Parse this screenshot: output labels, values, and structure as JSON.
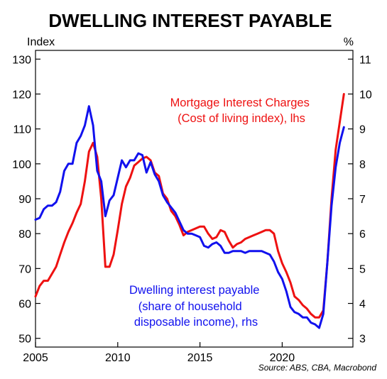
{
  "chart_data": {
    "type": "line",
    "title": "DWELLING INTEREST PAYABLE",
    "left_axis": {
      "unit": "Index",
      "range": [
        47.5,
        132.5
      ],
      "ticks": [
        50,
        60,
        70,
        80,
        90,
        100,
        110,
        120,
        130
      ]
    },
    "right_axis": {
      "unit": "%",
      "range": [
        2.75,
        11.25
      ],
      "ticks": [
        3,
        4,
        5,
        6,
        7,
        8,
        9,
        10,
        11
      ]
    },
    "x_axis": {
      "range": [
        2005,
        2024.3
      ],
      "ticks": [
        2005,
        2010,
        2015,
        2020
      ]
    },
    "grid": false,
    "series": [
      {
        "name": "Mortgage Interest Charges",
        "label_lines": [
          "Mortgage Interest Charges",
          "(Cost of living index), lhs"
        ],
        "axis": "left",
        "color": "#ee1111",
        "points": [
          [
            2005.0,
            62.0
          ],
          [
            2005.25,
            65.0
          ],
          [
            2005.5,
            66.5
          ],
          [
            2005.75,
            66.5
          ],
          [
            2006.0,
            68.5
          ],
          [
            2006.25,
            70.5
          ],
          [
            2006.5,
            74.0
          ],
          [
            2006.75,
            77.5
          ],
          [
            2007.0,
            80.5
          ],
          [
            2007.25,
            83.0
          ],
          [
            2007.5,
            86.0
          ],
          [
            2007.75,
            88.5
          ],
          [
            2008.0,
            95.0
          ],
          [
            2008.25,
            103.5
          ],
          [
            2008.5,
            106.0
          ],
          [
            2008.75,
            102.0
          ],
          [
            2009.0,
            90.0
          ],
          [
            2009.25,
            70.5
          ],
          [
            2009.5,
            70.5
          ],
          [
            2009.75,
            74.0
          ],
          [
            2010.0,
            81.0
          ],
          [
            2010.25,
            88.5
          ],
          [
            2010.5,
            93.5
          ],
          [
            2010.75,
            96.0
          ],
          [
            2011.0,
            99.5
          ],
          [
            2011.25,
            100.5
          ],
          [
            2011.5,
            101.5
          ],
          [
            2011.75,
            102.0
          ],
          [
            2012.0,
            101.0
          ],
          [
            2012.25,
            97.5
          ],
          [
            2012.5,
            96.5
          ],
          [
            2012.75,
            91.5
          ],
          [
            2013.0,
            90.0
          ],
          [
            2013.25,
            86.5
          ],
          [
            2013.5,
            85.0
          ],
          [
            2013.75,
            82.5
          ],
          [
            2014.0,
            79.5
          ],
          [
            2014.25,
            80.5
          ],
          [
            2014.5,
            81.0
          ],
          [
            2014.75,
            81.5
          ],
          [
            2015.0,
            82.0
          ],
          [
            2015.25,
            82.0
          ],
          [
            2015.5,
            80.0
          ],
          [
            2015.75,
            78.5
          ],
          [
            2016.0,
            79.0
          ],
          [
            2016.25,
            81.0
          ],
          [
            2016.5,
            80.5
          ],
          [
            2016.75,
            78.0
          ],
          [
            2017.0,
            76.0
          ],
          [
            2017.25,
            77.0
          ],
          [
            2017.5,
            77.5
          ],
          [
            2017.75,
            78.5
          ],
          [
            2018.0,
            79.0
          ],
          [
            2018.25,
            79.5
          ],
          [
            2018.5,
            80.0
          ],
          [
            2018.75,
            80.5
          ],
          [
            2019.0,
            81.0
          ],
          [
            2019.25,
            81.0
          ],
          [
            2019.5,
            80.0
          ],
          [
            2019.75,
            75.0
          ],
          [
            2020.0,
            71.5
          ],
          [
            2020.25,
            69.0
          ],
          [
            2020.5,
            66.0
          ],
          [
            2020.75,
            62.0
          ],
          [
            2021.0,
            61.0
          ],
          [
            2021.25,
            59.5
          ],
          [
            2021.5,
            58.5
          ],
          [
            2021.75,
            57.0
          ],
          [
            2022.0,
            56.0
          ],
          [
            2022.25,
            56.0
          ],
          [
            2022.5,
            58.0
          ],
          [
            2022.75,
            72.0
          ],
          [
            2023.0,
            90.0
          ],
          [
            2023.25,
            104.0
          ],
          [
            2023.5,
            112.0
          ],
          [
            2023.75,
            120.0
          ]
        ]
      },
      {
        "name": "Dwelling interest payable",
        "label_lines": [
          "Dwelling interest payable",
          "(share of household",
          "disposable income), rhs"
        ],
        "axis": "right",
        "color": "#1111ee",
        "points": [
          [
            2005.0,
            6.4
          ],
          [
            2005.25,
            6.45
          ],
          [
            2005.5,
            6.7
          ],
          [
            2005.75,
            6.8
          ],
          [
            2006.0,
            6.8
          ],
          [
            2006.25,
            6.9
          ],
          [
            2006.5,
            7.2
          ],
          [
            2006.75,
            7.8
          ],
          [
            2007.0,
            8.0
          ],
          [
            2007.25,
            8.0
          ],
          [
            2007.5,
            8.6
          ],
          [
            2007.75,
            8.8
          ],
          [
            2008.0,
            9.1
          ],
          [
            2008.25,
            9.65
          ],
          [
            2008.5,
            9.1
          ],
          [
            2008.75,
            7.8
          ],
          [
            2009.0,
            7.5
          ],
          [
            2009.25,
            6.5
          ],
          [
            2009.5,
            6.95
          ],
          [
            2009.75,
            7.1
          ],
          [
            2010.0,
            7.6
          ],
          [
            2010.25,
            8.1
          ],
          [
            2010.5,
            7.9
          ],
          [
            2010.75,
            8.1
          ],
          [
            2011.0,
            8.1
          ],
          [
            2011.25,
            8.3
          ],
          [
            2011.5,
            8.25
          ],
          [
            2011.75,
            7.75
          ],
          [
            2012.0,
            8.05
          ],
          [
            2012.25,
            7.7
          ],
          [
            2012.5,
            7.5
          ],
          [
            2012.75,
            7.1
          ],
          [
            2013.0,
            6.9
          ],
          [
            2013.25,
            6.75
          ],
          [
            2013.5,
            6.6
          ],
          [
            2013.75,
            6.35
          ],
          [
            2014.0,
            6.1
          ],
          [
            2014.25,
            6.0
          ],
          [
            2014.5,
            6.0
          ],
          [
            2014.75,
            5.95
          ],
          [
            2015.0,
            5.9
          ],
          [
            2015.25,
            5.65
          ],
          [
            2015.5,
            5.6
          ],
          [
            2015.75,
            5.7
          ],
          [
            2016.0,
            5.75
          ],
          [
            2016.25,
            5.65
          ],
          [
            2016.5,
            5.45
          ],
          [
            2016.75,
            5.45
          ],
          [
            2017.0,
            5.5
          ],
          [
            2017.25,
            5.5
          ],
          [
            2017.5,
            5.5
          ],
          [
            2017.75,
            5.45
          ],
          [
            2018.0,
            5.5
          ],
          [
            2018.25,
            5.5
          ],
          [
            2018.5,
            5.5
          ],
          [
            2018.75,
            5.5
          ],
          [
            2019.0,
            5.45
          ],
          [
            2019.25,
            5.4
          ],
          [
            2019.5,
            5.2
          ],
          [
            2019.75,
            4.9
          ],
          [
            2020.0,
            4.7
          ],
          [
            2020.25,
            4.35
          ],
          [
            2020.5,
            3.9
          ],
          [
            2020.75,
            3.75
          ],
          [
            2021.0,
            3.7
          ],
          [
            2021.25,
            3.6
          ],
          [
            2021.5,
            3.6
          ],
          [
            2021.75,
            3.45
          ],
          [
            2022.0,
            3.4
          ],
          [
            2022.25,
            3.3
          ],
          [
            2022.5,
            3.7
          ],
          [
            2022.75,
            5.2
          ],
          [
            2023.0,
            6.8
          ],
          [
            2023.25,
            7.9
          ],
          [
            2023.5,
            8.6
          ],
          [
            2023.75,
            9.05
          ]
        ]
      }
    ],
    "source": "Source: ABS, CBA, Macrobond"
  }
}
